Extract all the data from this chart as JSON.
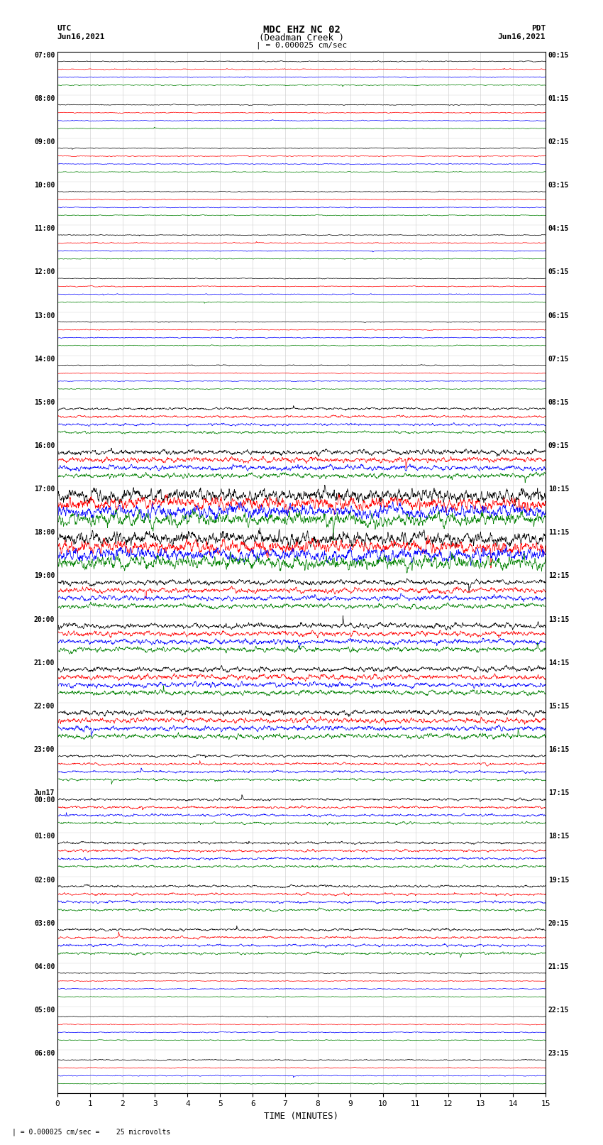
{
  "title_line1": "MDC EHZ NC 02",
  "title_line2": "(Deadman Creek )",
  "title_line3": "| = 0.000025 cm/sec",
  "label_left_top": "UTC",
  "label_left_date": "Jun16,2021",
  "label_right_top": "PDT",
  "label_right_date": "Jun16,2021",
  "xlabel": "TIME (MINUTES)",
  "footer": "| = 0.000025 cm/sec =    25 microvolts",
  "bg_color": "#ffffff",
  "plot_bg_color": "#ffffff",
  "trace_colors": [
    "black",
    "red",
    "blue",
    "green"
  ],
  "num_groups": 24,
  "left_labels": [
    "07:00",
    "08:00",
    "09:00",
    "10:00",
    "11:00",
    "12:00",
    "13:00",
    "14:00",
    "15:00",
    "16:00",
    "17:00",
    "18:00",
    "19:00",
    "20:00",
    "21:00",
    "22:00",
    "23:00",
    "Jun17\n00:00",
    "01:00",
    "02:00",
    "03:00",
    "04:00",
    "05:00",
    "06:00"
  ],
  "right_labels": [
    "00:15",
    "01:15",
    "02:15",
    "03:15",
    "04:15",
    "05:15",
    "06:15",
    "07:15",
    "08:15",
    "09:15",
    "10:15",
    "11:15",
    "12:15",
    "13:15",
    "14:15",
    "15:15",
    "16:15",
    "17:15",
    "18:15",
    "19:15",
    "20:15",
    "21:15",
    "22:15",
    "23:15"
  ],
  "xmin": 0,
  "xmax": 15,
  "xticks": [
    0,
    1,
    2,
    3,
    4,
    5,
    6,
    7,
    8,
    9,
    10,
    11,
    12,
    13,
    14,
    15
  ],
  "base_amp": 0.03,
  "n_points": 1800,
  "active_groups_high": [
    10,
    11
  ],
  "active_groups_med": [
    9,
    12,
    13,
    14,
    15
  ],
  "active_groups_low": [
    8,
    16,
    17,
    18,
    19,
    20
  ]
}
